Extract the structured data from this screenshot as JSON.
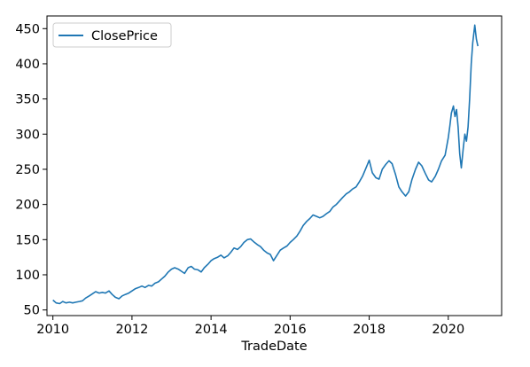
{
  "chart_data": {
    "type": "line",
    "title": "",
    "xlabel": "TradeDate",
    "ylabel": "",
    "xlim": [
      2009.85,
      2021.35
    ],
    "ylim": [
      42,
      468
    ],
    "xticks": [
      2010,
      2012,
      2014,
      2016,
      2018,
      2020
    ],
    "xtick_labels": [
      "2010",
      "2012",
      "2014",
      "2016",
      "2018",
      "2020"
    ],
    "yticks": [
      50,
      100,
      150,
      200,
      250,
      300,
      350,
      400,
      450
    ],
    "ytick_labels": [
      "50",
      "100",
      "150",
      "200",
      "250",
      "300",
      "350",
      "400",
      "450"
    ],
    "grid": false,
    "legend_position": "top-left",
    "series": [
      {
        "name": "ClosePrice",
        "color": "#1f77b4",
        "x": [
          2010.0,
          2010.08,
          2010.17,
          2010.25,
          2010.33,
          2010.42,
          2010.5,
          2010.58,
          2010.67,
          2010.75,
          2010.83,
          2010.92,
          2011.0,
          2011.08,
          2011.17,
          2011.25,
          2011.33,
          2011.42,
          2011.5,
          2011.58,
          2011.67,
          2011.75,
          2011.83,
          2011.92,
          2012.0,
          2012.08,
          2012.17,
          2012.25,
          2012.33,
          2012.42,
          2012.5,
          2012.58,
          2012.67,
          2012.75,
          2012.83,
          2012.92,
          2013.0,
          2013.08,
          2013.17,
          2013.25,
          2013.33,
          2013.42,
          2013.5,
          2013.58,
          2013.67,
          2013.75,
          2013.83,
          2013.92,
          2014.0,
          2014.08,
          2014.17,
          2014.25,
          2014.33,
          2014.42,
          2014.5,
          2014.58,
          2014.67,
          2014.75,
          2014.83,
          2014.92,
          2015.0,
          2015.08,
          2015.17,
          2015.25,
          2015.33,
          2015.42,
          2015.5,
          2015.58,
          2015.67,
          2015.75,
          2015.83,
          2015.92,
          2016.0,
          2016.08,
          2016.17,
          2016.25,
          2016.33,
          2016.42,
          2016.5,
          2016.58,
          2016.67,
          2016.75,
          2016.83,
          2016.92,
          2017.0,
          2017.08,
          2017.17,
          2017.25,
          2017.33,
          2017.42,
          2017.5,
          2017.58,
          2017.67,
          2017.75,
          2017.83,
          2017.92,
          2018.0,
          2018.08,
          2018.17,
          2018.25,
          2018.33,
          2018.42,
          2018.5,
          2018.58,
          2018.67,
          2018.75,
          2018.83,
          2018.92,
          2019.0,
          2019.08,
          2019.17,
          2019.25,
          2019.33,
          2019.42,
          2019.5,
          2019.58,
          2019.67,
          2019.75,
          2019.83,
          2019.92,
          2020.0,
          2020.04,
          2020.08,
          2020.13,
          2020.17,
          2020.21,
          2020.25,
          2020.29,
          2020.33,
          2020.38,
          2020.42,
          2020.46,
          2020.5,
          2020.54,
          2020.58,
          2020.62,
          2020.67,
          2020.71,
          2020.75
        ],
        "y": [
          64,
          60,
          59,
          62,
          60,
          61,
          60,
          61,
          62,
          63,
          67,
          70,
          73,
          76,
          74,
          75,
          74,
          77,
          72,
          68,
          66,
          70,
          72,
          74,
          77,
          80,
          82,
          84,
          82,
          85,
          84,
          88,
          90,
          94,
          98,
          104,
          108,
          110,
          108,
          105,
          102,
          110,
          112,
          108,
          107,
          104,
          110,
          115,
          120,
          123,
          125,
          128,
          124,
          127,
          132,
          138,
          136,
          140,
          146,
          150,
          151,
          147,
          143,
          140,
          135,
          131,
          129,
          120,
          128,
          135,
          138,
          141,
          146,
          150,
          155,
          162,
          170,
          176,
          180,
          185,
          183,
          181,
          183,
          187,
          190,
          196,
          200,
          205,
          210,
          215,
          218,
          222,
          225,
          232,
          240,
          252,
          263,
          245,
          238,
          236,
          250,
          257,
          262,
          258,
          242,
          225,
          218,
          212,
          218,
          235,
          250,
          260,
          255,
          244,
          235,
          232,
          240,
          250,
          262,
          270,
          295,
          312,
          330,
          340,
          325,
          335,
          310,
          272,
          252,
          280,
          300,
          290,
          310,
          350,
          400,
          430,
          455,
          435,
          425
        ]
      }
    ]
  }
}
